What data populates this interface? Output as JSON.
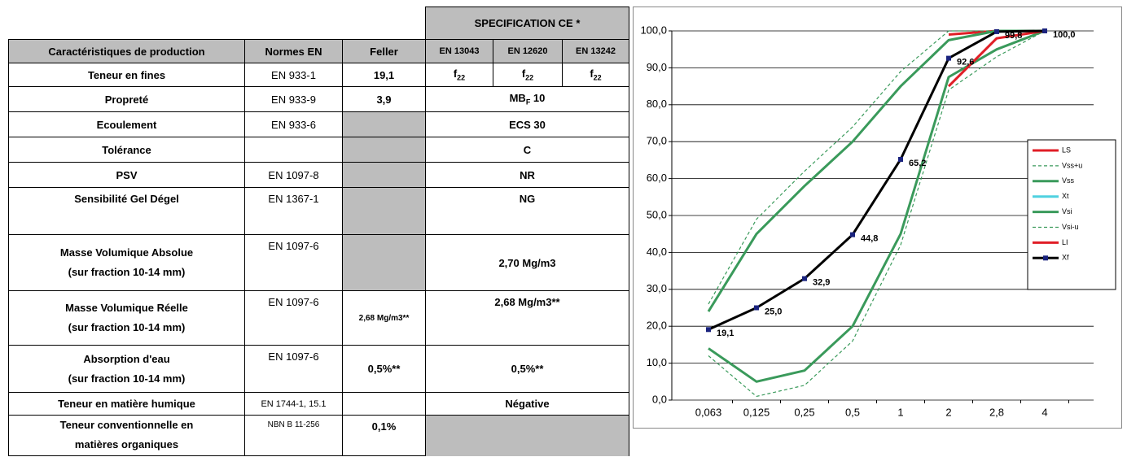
{
  "table": {
    "spec_header": "SPECIFICATION CE *",
    "headers": [
      "Caractéristiques de production",
      "Normes EN",
      "Feller",
      "EN 13043",
      "EN 12620",
      "EN 13242"
    ],
    "rows": [
      {
        "label": [
          "Teneur en fines"
        ],
        "norm": "EN 933-1",
        "feller": "19,1",
        "spec": [
          {
            "main": "f",
            "sub": "22"
          },
          {
            "main": "f",
            "sub": "22"
          },
          {
            "main": "f",
            "sub": "22"
          }
        ]
      },
      {
        "label": [
          "Propreté"
        ],
        "norm": "EN 933-9",
        "feller": "3,9",
        "spec": {
          "main": "MB",
          "sub": "F",
          "tail": " 10"
        }
      },
      {
        "label": [
          "Ecoulement"
        ],
        "norm": "EN 933-6",
        "spec": "ECS 30"
      },
      {
        "label": [
          "Tolérance"
        ],
        "spec": "C"
      },
      {
        "label": [
          "PSV"
        ],
        "norm": "EN 1097-8",
        "spec": "NR"
      },
      {
        "label": [
          "Sensibilité Gel Dégel"
        ],
        "norm": "EN 1367-1",
        "spec": "NG"
      },
      {
        "label": [
          "Masse Volumique Absolue",
          "(sur fraction 10-14 mm)"
        ],
        "norm": "EN 1097-6",
        "spec": "2,70 Mg/m3"
      },
      {
        "label": [
          "Masse Volumique Réelle",
          "(sur fraction 10-14 mm)"
        ],
        "norm": "EN 1097-6",
        "feller": "2,68 Mg/m3**",
        "spec": "2,68 Mg/m3**"
      },
      {
        "label": [
          "Absorption d'eau",
          "(sur fraction 10-14 mm)"
        ],
        "norm": "EN 1097-6",
        "feller": "0,5%**",
        "spec": "0,5%**"
      },
      {
        "label": [
          "Teneur en matière humique"
        ],
        "norm": "EN 1744-1, 15.1",
        "spec": "Négative"
      },
      {
        "label": [
          "Teneur conventionnelle en",
          "matières organiques"
        ],
        "norm": "NBN B 11-256",
        "feller": "0,1%"
      }
    ]
  },
  "chart_data": {
    "type": "line",
    "categories": [
      "0,063",
      "0,125",
      "0,25",
      "0,5",
      "1",
      "2",
      "2,8",
      "4"
    ],
    "ylim": [
      0,
      100
    ],
    "yticks": [
      {
        "value": 0,
        "label": "0,0"
      },
      {
        "value": 10,
        "label": "10,0"
      },
      {
        "value": 20,
        "label": "20,0"
      },
      {
        "value": 30,
        "label": "30,0"
      },
      {
        "value": 40,
        "label": "40,0"
      },
      {
        "value": 50,
        "label": "50,0"
      },
      {
        "value": 60,
        "label": "60,0"
      },
      {
        "value": 70,
        "label": "70,0"
      },
      {
        "value": 80,
        "label": "80,0"
      },
      {
        "value": 90,
        "label": "90,0"
      },
      {
        "value": 100,
        "label": "100,0"
      }
    ],
    "grid": true,
    "legend": "right",
    "series": [
      {
        "name": "LS",
        "color": "#e01e26",
        "values": [
          null,
          null,
          null,
          null,
          null,
          99,
          100,
          100
        ]
      },
      {
        "name": "Vss+u",
        "color": "#3a9a5b",
        "dashed": true,
        "values": [
          26,
          49,
          62,
          74,
          89,
          100,
          100,
          100
        ]
      },
      {
        "name": "Vss",
        "color": "#3a9a5b",
        "values": [
          24,
          45,
          58,
          70,
          85,
          97.5,
          100,
          100
        ]
      },
      {
        "name": "Xt",
        "color": "#4fd1e0",
        "values": [
          null,
          null,
          null,
          null,
          null,
          null,
          null,
          null
        ]
      },
      {
        "name": "Vsi",
        "color": "#3a9a5b",
        "values": [
          14,
          5,
          8,
          20,
          45,
          87.5,
          95,
          100
        ]
      },
      {
        "name": "Vsi-u",
        "color": "#3a9a5b",
        "dashed": true,
        "values": [
          12,
          1,
          4,
          16,
          42,
          84,
          93,
          100
        ]
      },
      {
        "name": "LI",
        "color": "#e01e26",
        "values": [
          null,
          null,
          null,
          null,
          null,
          85,
          98,
          100
        ]
      },
      {
        "name": "Xf",
        "color": "#000000",
        "marker_color": "#1a237e",
        "marker": "square",
        "values": [
          19.1,
          25.0,
          32.9,
          44.8,
          65.2,
          92.6,
          99.8,
          100.0
        ],
        "value_labels": [
          "19,1",
          "25,0",
          "32,9",
          "44,8",
          "65,2",
          "92,6",
          "99,8",
          "100,0"
        ]
      }
    ]
  }
}
